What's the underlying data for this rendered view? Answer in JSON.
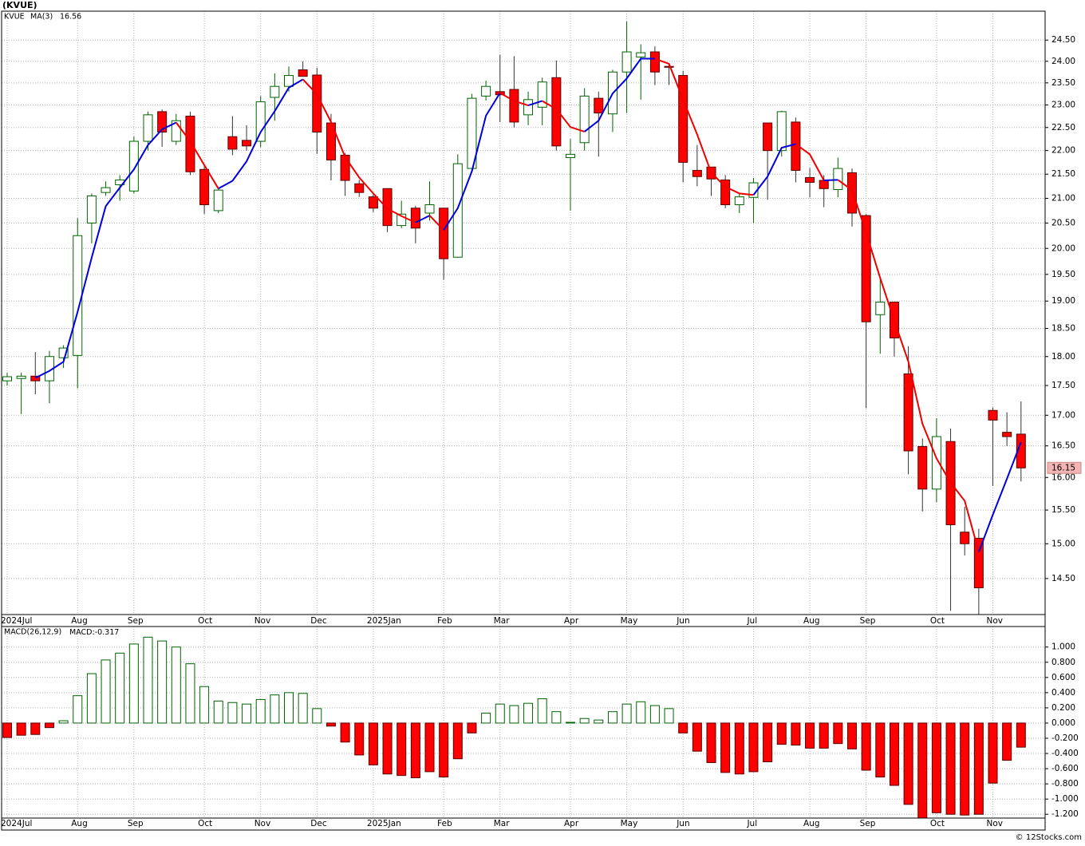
{
  "chart_data": [
    {
      "type": "candlestick",
      "title": "(KVUE)",
      "symbol": "KVUE",
      "categories": [
        "2024Jul",
        null,
        null,
        null,
        null,
        "Aug",
        null,
        null,
        null,
        "Sep",
        null,
        null,
        null,
        null,
        "Oct",
        null,
        null,
        null,
        "Nov",
        null,
        null,
        null,
        "Dec",
        null,
        null,
        null,
        "2025Jan",
        null,
        null,
        null,
        null,
        "Feb",
        null,
        null,
        null,
        "Mar",
        null,
        null,
        null,
        null,
        "Apr",
        null,
        null,
        null,
        "May",
        null,
        null,
        null,
        "Jun",
        null,
        null,
        null,
        null,
        "Jul",
        null,
        null,
        null,
        "Aug",
        null,
        null,
        null,
        "Sep",
        null,
        null,
        null,
        null,
        "Oct",
        null,
        null,
        null,
        "Nov",
        null,
        null
      ],
      "open": [
        17.58,
        17.62,
        17.66,
        17.58,
        17.98,
        18.02,
        20.5,
        21.12,
        21.28,
        21.15,
        22.2,
        22.85,
        22.2,
        22.75,
        21.6,
        20.75,
        22.3,
        22.22,
        22.2,
        23.17,
        23.42,
        23.8,
        23.68,
        22.6,
        21.9,
        21.3,
        21.03,
        21.2,
        20.45,
        20.8,
        20.7,
        20.8,
        19.83,
        21.62,
        23.2,
        23.3,
        23.35,
        22.78,
        22.95,
        23.62,
        21.85,
        22.17,
        23.15,
        22.8,
        23.75,
        24.1,
        24.22,
        23.88,
        23.67,
        21.58,
        21.65,
        21.38,
        20.87,
        21.02,
        22.6,
        22.0,
        22.62,
        21.43,
        21.37,
        21.18,
        21.53,
        20.65,
        18.75,
        18.98,
        17.7,
        16.49,
        15.82,
        16.57,
        15.17,
        15.08,
        17.08,
        16.72,
        16.69
      ],
      "high": [
        17.72,
        17.72,
        18.08,
        18.1,
        18.2,
        20.6,
        21.1,
        21.35,
        21.48,
        22.3,
        22.85,
        22.9,
        22.8,
        22.85,
        21.68,
        21.2,
        22.75,
        22.55,
        23.2,
        23.72,
        23.88,
        24.0,
        23.85,
        22.8,
        21.95,
        21.38,
        21.12,
        21.2,
        20.95,
        20.85,
        21.35,
        20.8,
        21.92,
        23.25,
        23.55,
        24.15,
        24.12,
        23.3,
        23.62,
        24.02,
        22.25,
        23.38,
        23.3,
        23.8,
        24.95,
        24.4,
        24.35,
        23.95,
        23.78,
        22.12,
        21.65,
        21.48,
        21.1,
        21.42,
        22.6,
        22.87,
        22.72,
        21.63,
        21.48,
        21.85,
        21.62,
        20.68,
        19.42,
        18.98,
        18.18,
        16.62,
        16.95,
        16.78,
        15.55,
        15.22,
        17.13,
        17.05,
        17.23
      ],
      "low": [
        17.5,
        17.02,
        17.35,
        17.2,
        17.8,
        17.45,
        20.1,
        21.05,
        20.95,
        21.1,
        22.0,
        22.08,
        22.12,
        21.48,
        20.68,
        20.7,
        21.9,
        22.0,
        22.07,
        22.65,
        23.3,
        23.65,
        21.93,
        21.37,
        21.05,
        21.03,
        20.72,
        20.32,
        20.4,
        20.1,
        20.55,
        19.4,
        19.82,
        21.62,
        23.1,
        22.62,
        22.5,
        22.55,
        22.55,
        22.0,
        20.75,
        22.0,
        21.87,
        22.4,
        22.82,
        23.12,
        23.45,
        23.45,
        21.33,
        21.25,
        21.05,
        20.8,
        20.7,
        20.5,
        20.97,
        21.87,
        21.33,
        21.02,
        20.82,
        21.02,
        20.43,
        17.12,
        18.05,
        18.0,
        16.05,
        15.48,
        15.62,
        14.05,
        14.83,
        14.0,
        15.87,
        16.5,
        15.94
      ],
      "close": [
        17.65,
        17.66,
        17.58,
        18.0,
        18.15,
        20.25,
        21.05,
        21.22,
        21.38,
        22.2,
        22.78,
        22.4,
        22.65,
        21.55,
        20.87,
        21.17,
        22.03,
        22.1,
        23.07,
        23.42,
        23.67,
        23.65,
        22.4,
        21.8,
        21.37,
        21.12,
        20.8,
        20.45,
        20.68,
        20.4,
        20.87,
        19.8,
        21.72,
        23.15,
        23.42,
        23.23,
        22.62,
        23.12,
        23.52,
        22.1,
        21.92,
        23.2,
        22.82,
        23.75,
        24.22,
        24.2,
        23.75,
        23.86,
        21.75,
        21.45,
        21.4,
        20.87,
        21.03,
        21.32,
        22.0,
        22.85,
        21.58,
        21.33,
        21.2,
        21.62,
        20.7,
        18.62,
        18.98,
        18.33,
        16.42,
        15.82,
        16.65,
        15.28,
        15.0,
        14.37,
        16.92,
        16.65,
        16.15
      ],
      "up_color": "#006400",
      "down_color": "#ff0000",
      "last_price_color": "#f4b4b4",
      "ma": {
        "name": "MA(3)",
        "up_color": "#0000dd",
        "down_color": "#ee0000",
        "values": [
          null,
          null,
          17.63,
          17.75,
          17.91,
          18.8,
          19.82,
          20.84,
          21.22,
          21.6,
          22.12,
          22.46,
          22.61,
          22.2,
          21.69,
          21.2,
          21.36,
          21.77,
          22.4,
          22.86,
          23.39,
          23.58,
          23.24,
          22.62,
          21.86,
          21.43,
          21.1,
          20.79,
          20.64,
          20.51,
          20.65,
          20.36,
          20.8,
          21.56,
          22.76,
          23.27,
          23.09,
          22.99,
          23.09,
          22.91,
          22.51,
          22.41,
          22.65,
          23.26,
          23.6,
          24.06,
          24.06,
          23.94,
          23.12,
          22.35,
          21.53,
          21.24,
          21.1,
          21.07,
          21.45,
          22.06,
          22.14,
          21.92,
          21.37,
          21.38,
          21.17,
          20.31,
          19.43,
          18.64,
          17.91,
          16.86,
          16.3,
          15.92,
          15.64,
          14.88,
          15.43,
          15.98,
          16.56
        ]
      },
      "log_scale": true,
      "grid": true,
      "ylim": [
        14.0,
        25.2
      ],
      "yticks": [
        {
          "value": 14.5,
          "label": "14.50"
        },
        {
          "value": 15,
          "label": "15.00"
        },
        {
          "value": 15.5,
          "label": "15.50"
        },
        {
          "value": 16,
          "label": "16.00"
        },
        {
          "value": 16.5,
          "label": "16.50"
        },
        {
          "value": 17,
          "label": "17.00"
        },
        {
          "value": 17.5,
          "label": "17.50"
        },
        {
          "value": 18,
          "label": "18.00"
        },
        {
          "value": 18.5,
          "label": "18.50"
        },
        {
          "value": 19,
          "label": "19.00"
        },
        {
          "value": 19.5,
          "label": "19.50"
        },
        {
          "value": 20,
          "label": "20.00"
        },
        {
          "value": 20.5,
          "label": "20.50"
        },
        {
          "value": 21,
          "label": "21.00"
        },
        {
          "value": 21.5,
          "label": "21.50"
        },
        {
          "value": 22,
          "label": "22.00"
        },
        {
          "value": 22.5,
          "label": "22.50"
        },
        {
          "value": 23,
          "label": "23.00"
        },
        {
          "value": 23.5,
          "label": "23.50"
        },
        {
          "value": 24,
          "label": "24.00"
        },
        {
          "value": 24.5,
          "label": "24.50"
        }
      ]
    },
    {
      "type": "bar",
      "title": "MACD(26,12,9)",
      "value_prefix": "MACD:",
      "values": [
        -0.19,
        -0.16,
        -0.15,
        -0.06,
        0.03,
        0.36,
        0.65,
        0.83,
        0.92,
        1.04,
        1.13,
        1.08,
        1.0,
        0.78,
        0.48,
        0.29,
        0.27,
        0.25,
        0.31,
        0.37,
        0.4,
        0.39,
        0.19,
        -0.04,
        -0.25,
        -0.42,
        -0.55,
        -0.67,
        -0.69,
        -0.72,
        -0.64,
        -0.71,
        -0.47,
        -0.13,
        0.13,
        0.25,
        0.23,
        0.26,
        0.32,
        0.15,
        0.01,
        0.06,
        0.04,
        0.15,
        0.25,
        0.28,
        0.23,
        0.19,
        -0.13,
        -0.37,
        -0.52,
        -0.65,
        -0.67,
        -0.64,
        -0.51,
        -0.28,
        -0.29,
        -0.33,
        -0.33,
        -0.27,
        -0.34,
        -0.62,
        -0.71,
        -0.82,
        -1.07,
        -1.25,
        -1.18,
        -1.2,
        -1.21,
        -1.2,
        -0.79,
        -0.49,
        -0.317
      ],
      "up_color": "#006400",
      "down_color": "#ff0000",
      "label_color": "#0000cc",
      "grid": true,
      "ylim": [
        -1.25,
        1.27
      ],
      "yticks": [
        {
          "value": -1.2,
          "label": "-1.200"
        },
        {
          "value": -1.0,
          "label": "-1.000"
        },
        {
          "value": -0.8,
          "label": "-0.800"
        },
        {
          "value": -0.6,
          "label": "-0.600"
        },
        {
          "value": -0.4,
          "label": "-0.400"
        },
        {
          "value": -0.2,
          "label": "-0.200"
        },
        {
          "value": 0,
          "label": "0.000"
        },
        {
          "value": 0.2,
          "label": "0.200"
        },
        {
          "value": 0.4,
          "label": "0.400"
        },
        {
          "value": 0.6,
          "label": "0.600"
        },
        {
          "value": 0.8,
          "label": "0.800"
        },
        {
          "value": 1.0,
          "label": "1.000"
        }
      ]
    }
  ],
  "footer": "© 12Stocks.com"
}
